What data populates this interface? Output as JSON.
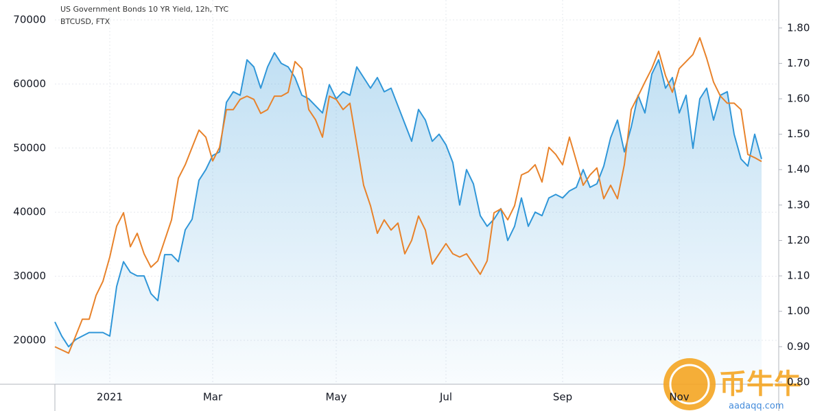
{
  "chart_data": {
    "type": "line",
    "categories": [
      null,
      null,
      null,
      null,
      null,
      null,
      null,
      null,
      "2021",
      null,
      null,
      null,
      null,
      null,
      null,
      null,
      null,
      null,
      null,
      null,
      null,
      null,
      null,
      "Mar",
      null,
      null,
      null,
      null,
      null,
      null,
      null,
      null,
      null,
      null,
      null,
      null,
      null,
      null,
      null,
      null,
      null,
      "May",
      null,
      null,
      null,
      null,
      null,
      null,
      null,
      null,
      null,
      null,
      null,
      null,
      null,
      null,
      null,
      "Jul",
      null,
      null,
      null,
      null,
      null,
      null,
      null,
      null,
      null,
      null,
      null,
      null,
      null,
      null,
      null,
      null,
      "Sep",
      null,
      null,
      null,
      null,
      null,
      null,
      null,
      null,
      null,
      null,
      null,
      null,
      null,
      null,
      null,
      null,
      "Nov",
      null,
      null,
      null,
      null,
      null,
      null,
      null,
      null,
      null,
      null,
      null,
      null
    ],
    "series": [
      {
        "name": "US Government Bonds 10 YR Yield, 12h, TYC",
        "color": "#2f96d8",
        "axis": "y2",
        "area": true,
        "values": [
          0.97,
          0.93,
          0.9,
          0.92,
          0.93,
          0.94,
          0.94,
          0.94,
          0.93,
          1.07,
          1.14,
          1.11,
          1.1,
          1.1,
          1.05,
          1.03,
          1.16,
          1.16,
          1.14,
          1.23,
          1.26,
          1.37,
          1.4,
          1.44,
          1.45,
          1.59,
          1.62,
          1.61,
          1.71,
          1.69,
          1.63,
          1.69,
          1.73,
          1.7,
          1.69,
          1.66,
          1.61,
          1.6,
          1.58,
          1.56,
          1.64,
          1.6,
          1.62,
          1.61,
          1.69,
          1.66,
          1.63,
          1.66,
          1.62,
          1.63,
          1.58,
          1.53,
          1.48,
          1.57,
          1.54,
          1.48,
          1.5,
          1.47,
          1.42,
          1.3,
          1.4,
          1.36,
          1.27,
          1.24,
          1.26,
          1.29,
          1.2,
          1.24,
          1.32,
          1.24,
          1.28,
          1.27,
          1.32,
          1.33,
          1.32,
          1.34,
          1.35,
          1.4,
          1.35,
          1.36,
          1.41,
          1.49,
          1.54,
          1.45,
          1.52,
          1.61,
          1.56,
          1.67,
          1.71,
          1.63,
          1.66,
          1.56,
          1.61,
          1.46,
          1.6,
          1.63,
          1.54,
          1.61,
          1.62,
          1.5,
          1.43,
          1.41,
          1.5,
          1.43
        ]
      },
      {
        "name": "BTCUSD, FTX",
        "color": "#e8822a",
        "axis": "y",
        "values": [
          19000,
          18500,
          18000,
          20600,
          23300,
          23300,
          27000,
          29200,
          33000,
          37800,
          39900,
          34600,
          36700,
          33500,
          31400,
          32400,
          35600,
          38800,
          45300,
          47400,
          50100,
          52800,
          51700,
          48000,
          50100,
          56000,
          56000,
          57600,
          58100,
          57600,
          55400,
          56000,
          58100,
          58100,
          58700,
          63500,
          62400,
          56000,
          54400,
          51700,
          58100,
          57600,
          56000,
          57000,
          50600,
          44200,
          41000,
          36700,
          38800,
          37200,
          38300,
          33500,
          35600,
          39400,
          37200,
          31900,
          33500,
          35100,
          33500,
          33000,
          33500,
          31900,
          30300,
          32400,
          39900,
          40500,
          38800,
          41000,
          45800,
          46300,
          47400,
          44700,
          50100,
          49000,
          47400,
          51700,
          48000,
          44200,
          45800,
          46900,
          42100,
          44200,
          42100,
          47400,
          56000,
          58100,
          60300,
          62400,
          65100,
          61300,
          58700,
          62400,
          63500,
          64600,
          67200,
          64000,
          60300,
          58100,
          57000,
          57000,
          56000,
          49000,
          48500,
          47900
        ]
      }
    ],
    "ylim": [
      13150,
      73100
    ],
    "yticks": [
      20000,
      30000,
      40000,
      50000,
      60000,
      70000
    ],
    "y2lim": [
      0.794,
      1.879
    ],
    "y2ticks": [
      {
        "value": 0.8,
        "label": "0.80"
      },
      {
        "value": 0.9,
        "label": "0.90"
      },
      {
        "value": 1.0,
        "label": "1.00"
      },
      {
        "value": 1.1,
        "label": "1.10"
      },
      {
        "value": 1.2,
        "label": "1.20"
      },
      {
        "value": 1.3,
        "label": "1.30"
      },
      {
        "value": 1.4,
        "label": "1.40"
      },
      {
        "value": 1.5,
        "label": "1.50"
      },
      {
        "value": 1.6,
        "label": "1.60"
      },
      {
        "value": 1.7,
        "label": "1.70"
      },
      {
        "value": 1.8,
        "label": "1.80"
      }
    ],
    "grid": true,
    "watermark": {
      "title": "币牛牛",
      "subtitle": "aadaqq.com"
    }
  }
}
